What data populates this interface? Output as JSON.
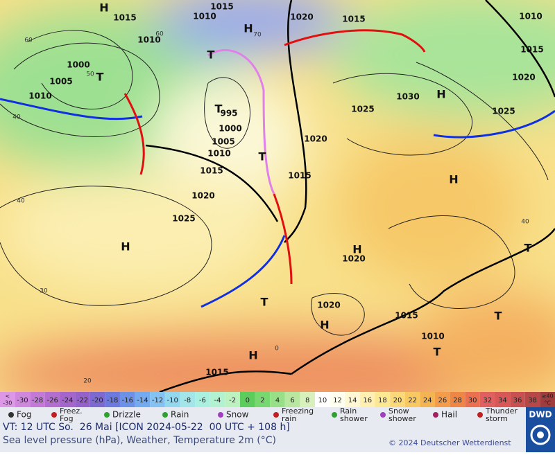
{
  "map": {
    "pressure_labels": [
      "1015",
      "1010",
      "1015",
      "1020",
      "1015",
      "1010",
      "1010",
      "1015",
      "1000",
      "1005",
      "1020",
      "1010",
      "1030",
      "1025",
      "1025",
      "995",
      "1000",
      "1005",
      "1020",
      "1010",
      "1015",
      "1015",
      "1020",
      "1025",
      "1020",
      "1020",
      "1015",
      "1010",
      "1015"
    ],
    "centers": [
      "H",
      "H",
      "T",
      "T",
      "T",
      "H",
      "T",
      "H",
      "H",
      "H",
      "T",
      "T",
      "H",
      "T",
      "H",
      "T"
    ],
    "latitude_labels": [
      "60",
      "60",
      "50",
      "40",
      "70",
      "40",
      "30",
      "20",
      "40",
      "0"
    ]
  },
  "scale": {
    "cells": [
      {
        "label": [
          "<",
          "-30"
        ],
        "color": "#dc98e6"
      },
      {
        "label": [
          "-30"
        ],
        "color": "#d088de"
      },
      {
        "label": [
          "-28"
        ],
        "color": "#c27ad6"
      },
      {
        "label": [
          "-26"
        ],
        "color": "#b46ed0"
      },
      {
        "label": [
          "-24"
        ],
        "color": "#a466ca"
      },
      {
        "label": [
          "-22"
        ],
        "color": "#9462c8"
      },
      {
        "label": [
          "-20"
        ],
        "color": "#7c6ad0"
      },
      {
        "label": [
          "-18"
        ],
        "color": "#6c7ade"
      },
      {
        "label": [
          "-16"
        ],
        "color": "#6c92e8"
      },
      {
        "label": [
          "-14"
        ],
        "color": "#74aaf0"
      },
      {
        "label": [
          "-12"
        ],
        "color": "#84c2f2"
      },
      {
        "label": [
          "-10"
        ],
        "color": "#94d8f0"
      },
      {
        "label": [
          "-8"
        ],
        "color": "#a2e6ea"
      },
      {
        "label": [
          "-6"
        ],
        "color": "#aaf0e0"
      },
      {
        "label": [
          "-4"
        ],
        "color": "#b2f2d0"
      },
      {
        "label": [
          "-2"
        ],
        "color": "#bcf2c0"
      },
      {
        "label": [
          "0"
        ],
        "color": "#5ccc5c"
      },
      {
        "label": [
          "2"
        ],
        "color": "#78d870"
      },
      {
        "label": [
          "4"
        ],
        "color": "#98e088"
      },
      {
        "label": [
          "6"
        ],
        "color": "#b8e8a0"
      },
      {
        "label": [
          "8"
        ],
        "color": "#d8f0bc"
      },
      {
        "label": [
          "10"
        ],
        "color": "#ffffff"
      },
      {
        "label": [
          "12"
        ],
        "color": "#fffff0"
      },
      {
        "label": [
          "14"
        ],
        "color": "#fff8d2"
      },
      {
        "label": [
          "16"
        ],
        "color": "#fff0b2"
      },
      {
        "label": [
          "18"
        ],
        "color": "#fde892"
      },
      {
        "label": [
          "20"
        ],
        "color": "#fbd87a"
      },
      {
        "label": [
          "22"
        ],
        "color": "#f8c862"
      },
      {
        "label": [
          "24"
        ],
        "color": "#f5b454"
      },
      {
        "label": [
          "26"
        ],
        "color": "#f29c4c"
      },
      {
        "label": [
          "28"
        ],
        "color": "#ee8646"
      },
      {
        "label": [
          "30"
        ],
        "color": "#ea7050"
      },
      {
        "label": [
          "32"
        ],
        "color": "#e06060"
      },
      {
        "label": [
          "34"
        ],
        "color": "#d85858"
      },
      {
        "label": [
          "36"
        ],
        "color": "#c85050"
      },
      {
        "label": [
          "38"
        ],
        "color": "#b84848"
      },
      {
        "label": [
          "≥40",
          "°C"
        ],
        "color": "#a03c3c"
      }
    ]
  },
  "legend": [
    {
      "label": [
        "Fog"
      ]
    },
    {
      "label": [
        "Freez.",
        "Fog"
      ]
    },
    {
      "label": [
        "Drizzle"
      ]
    },
    {
      "label": [
        "Rain"
      ]
    },
    {
      "label": [
        "Snow"
      ]
    },
    {
      "label": [
        "Freezing",
        "rain"
      ]
    },
    {
      "label": [
        "Rain",
        "shower"
      ]
    },
    {
      "label": [
        "Snow",
        "shower"
      ]
    },
    {
      "label": [
        "Hail"
      ]
    },
    {
      "label": [
        "Thunder",
        "storm"
      ]
    }
  ],
  "footer": {
    "valid_time": "VT: 12 UTC So.  26 Mai [ICON 2024-05-22  00 UTC + 108 h]",
    "description": "Sea level pressure (hPa), Weather, Temperature 2m (°C)",
    "copyright": "© 2024 Deutscher Wetterdienst",
    "logo": "DWD"
  }
}
